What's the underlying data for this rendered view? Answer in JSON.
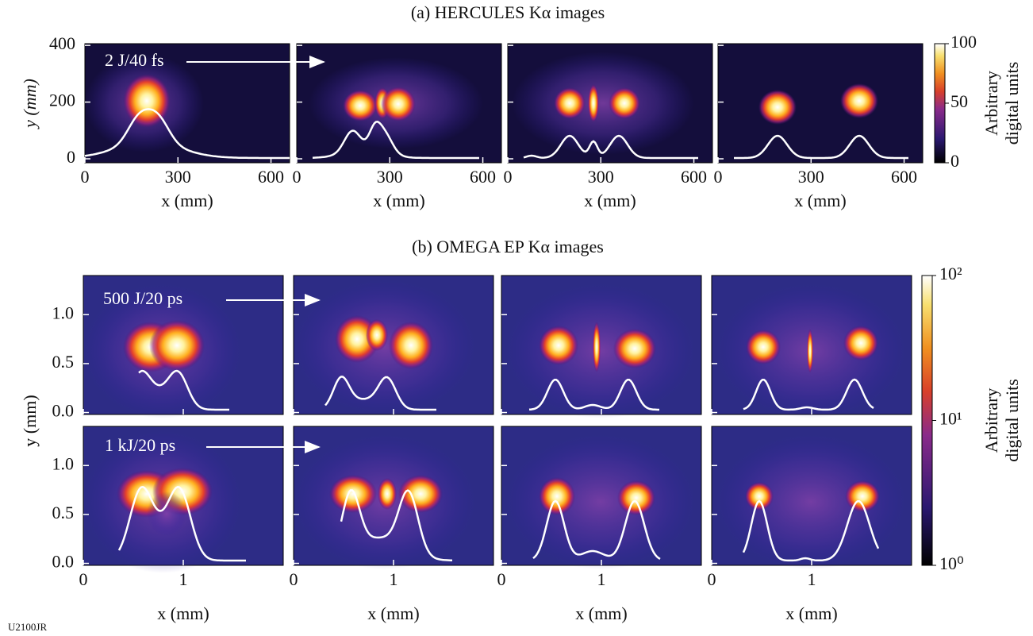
{
  "panel_a": {
    "title": "(a) HERCULES Kα images",
    "annotation": "2 J/40 fs",
    "y_label": "y (mm)",
    "x_label": "x (mm)",
    "xlim": [
      0,
      660
    ],
    "ylim": [
      -14,
      406
    ],
    "xticks": [
      0,
      300,
      600
    ],
    "yticks": [
      0,
      200,
      400
    ],
    "colorbar": {
      "label": [
        "Arbitrary",
        "digital units"
      ],
      "lim": [
        0,
        100
      ],
      "ticks": [
        0,
        50,
        100
      ]
    }
  },
  "panel_b": {
    "title": "(b) OMEGA EP Kα images",
    "annotations": [
      "500 J/20 ps",
      "1 kJ/20 ps"
    ],
    "y_label": "y (mm)",
    "x_label": "x (mm)",
    "xlim": [
      0,
      2
    ],
    "ylim": [
      -0.02,
      1.4
    ],
    "xticks": [
      0,
      1
    ],
    "yticks": [
      {
        "value": 0,
        "label": "0.0"
      },
      0.5,
      {
        "value": 1,
        "label": "1.0"
      }
    ],
    "colorbar": {
      "label": [
        "Arbitrary",
        "digital units"
      ],
      "log_scale": true,
      "lim": [
        1,
        100
      ],
      "ticks": [
        {
          "value": 1,
          "label": "10⁰"
        },
        {
          "value": 10,
          "label": "10¹"
        },
        {
          "value": 100,
          "label": "10²"
        }
      ]
    }
  },
  "figure_id": "U2100JR"
}
